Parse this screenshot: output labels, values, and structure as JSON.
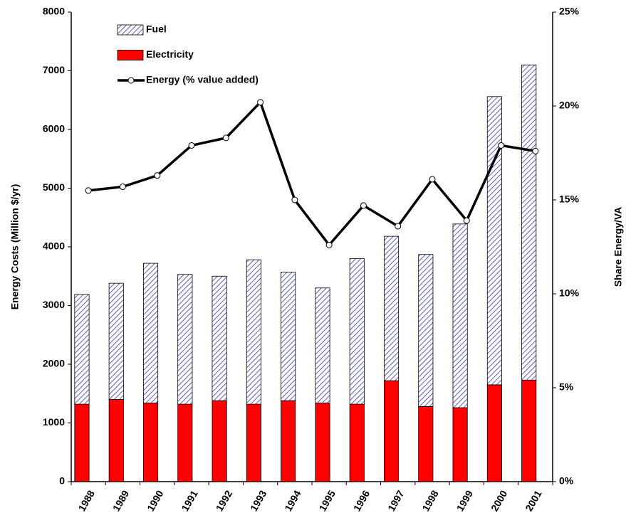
{
  "chart_data": {
    "type": "bar",
    "y_label": "Energy Costs (Million $/yr)",
    "y2_label": "Share Energy/VA",
    "categories": [
      "1988",
      "1989",
      "1990",
      "1991",
      "1992",
      "1993",
      "1994",
      "1995",
      "1996",
      "1997",
      "1998",
      "1999",
      "2000",
      "2001"
    ],
    "series": [
      {
        "name": "Fuel",
        "type": "bar",
        "hatch": true,
        "color": "#3333cc",
        "values": [
          1870,
          1980,
          2380,
          2210,
          2120,
          2460,
          2190,
          1960,
          2480,
          2460,
          2590,
          3130,
          4910,
          5370
        ]
      },
      {
        "name": "Electricity",
        "type": "bar",
        "color": "#ff0000",
        "values": [
          1320,
          1400,
          1340,
          1320,
          1380,
          1320,
          1380,
          1340,
          1320,
          1720,
          1280,
          1260,
          1650,
          1730
        ]
      },
      {
        "name": "Energy (% value added)",
        "type": "line",
        "axis": "y2",
        "color": "#000000",
        "values": [
          15.5,
          15.7,
          16.3,
          17.9,
          18.3,
          20.2,
          15.0,
          12.6,
          14.7,
          13.6,
          16.1,
          13.9,
          17.9,
          17.6
        ]
      }
    ],
    "ylim": [
      0,
      8000
    ],
    "yticks": [
      0,
      1000,
      2000,
      3000,
      4000,
      5000,
      6000,
      7000,
      8000
    ],
    "y2lim": [
      0,
      25
    ],
    "y2ticks": [
      {
        "value": 0,
        "label": "0%"
      },
      {
        "value": 5,
        "label": "5%"
      },
      {
        "value": 10,
        "label": "10%"
      },
      {
        "value": 15,
        "label": "15%"
      },
      {
        "value": 20,
        "label": "20%"
      },
      {
        "value": 25,
        "label": "25%"
      }
    ],
    "grid": false,
    "legend": "top-left"
  }
}
